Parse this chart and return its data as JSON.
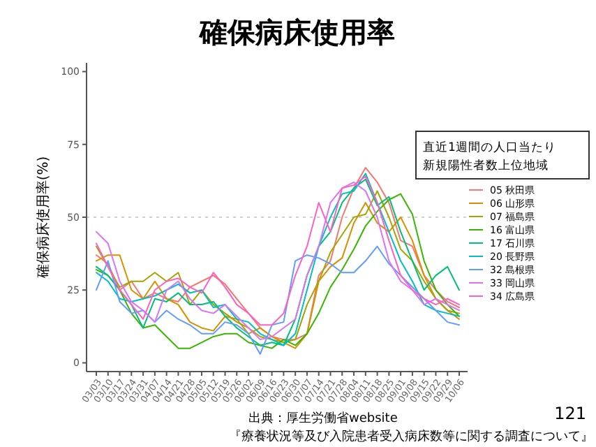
{
  "chart_data": {
    "type": "line",
    "title": "確保病床使用率",
    "ylabel": "確保病床使用率(%)",
    "legend_title": "直近1週間の人口当たり新規陽性者数上位地域",
    "legend": "right",
    "grid": false,
    "line_style": "solid",
    "categories": [
      "03/03",
      "03/10",
      "03/17",
      "03/24",
      "03/31",
      "04/07",
      "04/14",
      "04/21",
      "04/28",
      "05/05",
      "05/12",
      "05/19",
      "05/26",
      "06/02",
      "06/09",
      "06/16",
      "06/23",
      "06/30",
      "07/07",
      "07/14",
      "07/21",
      "07/28",
      "08/04",
      "08/11",
      "08/18",
      "08/25",
      "09/01",
      "09/08",
      "09/15",
      "09/22",
      "09/29",
      "10/06"
    ],
    "ylim": [
      -3,
      103
    ],
    "yticks": [
      0,
      25,
      50,
      75,
      100
    ],
    "ref_lines": [
      {
        "axis": "y",
        "value": 50,
        "color": "#d0d0d0",
        "line_style": "dotted"
      }
    ],
    "series": [
      {
        "name": "05 秋田県",
        "color": "#f8766d",
        "values": [
          37,
          34,
          25,
          28,
          22,
          24,
          22,
          21,
          26,
          28,
          30,
          27,
          22,
          17,
          12,
          9,
          8,
          8,
          10,
          30,
          35,
          50,
          60,
          67,
          62,
          55,
          42,
          40,
          30,
          25,
          21,
          19
        ]
      },
      {
        "name": "06 山形県",
        "color": "#d89000",
        "values": [
          35,
          37,
          37,
          25,
          22,
          28,
          22,
          20,
          14,
          12,
          11,
          16,
          15,
          10,
          12,
          9,
          7,
          5,
          10,
          28,
          33,
          36,
          48,
          55,
          48,
          45,
          50,
          42,
          30,
          22,
          18,
          15
        ]
      },
      {
        "name": "07 福島県",
        "color": "#a3a500",
        "values": [
          40,
          33,
          26,
          28,
          28,
          31,
          28,
          31,
          20,
          25,
          20,
          17,
          14,
          12,
          9,
          8,
          7,
          8,
          20,
          28,
          38,
          44,
          50,
          51,
          59,
          50,
          39,
          35,
          28,
          22,
          18,
          17
        ]
      },
      {
        "name": "16 富山県",
        "color": "#39b600",
        "values": [
          32,
          30,
          25,
          17,
          12,
          13,
          9,
          5,
          5,
          7,
          9,
          10,
          10,
          7,
          6,
          5,
          8,
          6,
          10,
          17,
          26,
          32,
          39,
          47,
          52,
          56,
          58,
          51,
          35,
          25,
          20,
          16
        ]
      },
      {
        "name": "17 石川県",
        "color": "#00bf7d",
        "values": [
          33,
          30,
          25,
          20,
          12,
          22,
          21,
          24,
          20,
          20,
          21,
          16,
          12,
          9,
          6,
          7,
          6,
          15,
          30,
          40,
          45,
          55,
          60,
          63,
          54,
          57,
          45,
          35,
          25,
          30,
          33,
          25
        ]
      },
      {
        "name": "20 長野県",
        "color": "#00bfc4",
        "values": [
          31,
          28,
          22,
          21,
          22,
          23,
          25,
          27,
          24,
          25,
          19,
          20,
          15,
          14,
          10,
          8,
          6,
          10,
          25,
          40,
          50,
          58,
          59,
          65,
          55,
          45,
          35,
          28,
          20,
          18,
          17,
          16
        ]
      },
      {
        "name": "32 島根県",
        "color": "#619cff",
        "values": [
          25,
          35,
          21,
          17,
          18,
          14,
          18,
          15,
          13,
          10,
          10,
          14,
          13,
          10,
          3,
          13,
          14,
          35,
          37,
          36,
          34,
          31,
          31,
          35,
          40,
          34,
          30,
          26,
          22,
          18,
          14,
          13
        ]
      },
      {
        "name": "33 岡山県",
        "color": "#db72fb",
        "values": [
          45,
          41,
          28,
          21,
          18,
          14,
          25,
          28,
          22,
          18,
          17,
          20,
          16,
          12,
          8,
          9,
          12,
          15,
          30,
          40,
          55,
          60,
          62,
          59,
          50,
          35,
          28,
          25,
          20,
          22,
          20,
          18
        ]
      },
      {
        "name": "34 広島県",
        "color": "#ff61c3",
        "values": [
          41,
          33,
          25,
          20,
          15,
          25,
          28,
          29,
          26,
          24,
          31,
          26,
          20,
          17,
          13,
          13,
          17,
          30,
          40,
          55,
          45,
          60,
          61,
          64,
          55,
          42,
          30,
          25,
          22,
          20,
          22,
          20
        ]
      }
    ],
    "annotations": [
      "出典：厚生労働省website",
      "『療養状況等及び入院患者受入病床数等に関する調査について』",
      "121"
    ]
  }
}
